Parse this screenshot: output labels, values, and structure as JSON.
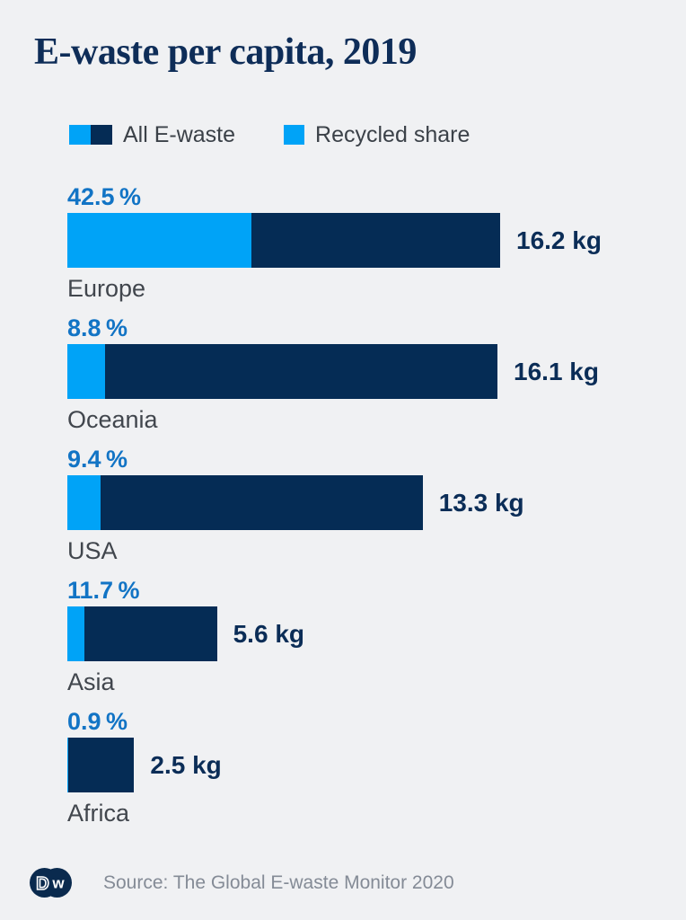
{
  "title": "E-waste per capita, 2019",
  "legend": {
    "all_label": "All E-waste",
    "recycled_label": "Recycled share"
  },
  "colors": {
    "background": "#f0f1f3",
    "bar_navy": "#052c55",
    "recycled_blue": "#00a3f7",
    "pct_text_blue": "#1274c5",
    "kg_text_navy": "#0b2d57",
    "region_text_gray": "#41464d",
    "source_text_gray": "#848b96"
  },
  "footer": {
    "logo": "dw-logo",
    "source": "Source: The Global E-waste Monitor 2020"
  },
  "chart_data": {
    "type": "bar",
    "orientation": "horizontal",
    "title": "E-waste per capita, 2019",
    "categories": [
      "Europe",
      "Oceania",
      "USA",
      "Asia",
      "Africa"
    ],
    "series": [
      {
        "name": "All E-waste",
        "unit": "kg",
        "values": [
          16.2,
          16.1,
          13.3,
          5.6,
          2.5
        ]
      },
      {
        "name": "Recycled share",
        "unit": "%",
        "values": [
          42.5,
          8.8,
          9.4,
          11.7,
          0.9
        ]
      }
    ],
    "xlim": [
      0,
      16.2
    ],
    "grid": false,
    "legend_position": "top",
    "source": "The Global E-waste Monitor 2020",
    "rows": [
      {
        "region": "Europe",
        "kg": 16.2,
        "pct": 42.5,
        "kg_label": "16.2 kg",
        "pct_label": "42.5 %"
      },
      {
        "region": "Oceania",
        "kg": 16.1,
        "pct": 8.8,
        "kg_label": "16.1 kg",
        "pct_label": "8.8 %"
      },
      {
        "region": "USA",
        "kg": 13.3,
        "pct": 9.4,
        "kg_label": "13.3 kg",
        "pct_label": "9.4 %"
      },
      {
        "region": "Asia",
        "kg": 5.6,
        "pct": 11.7,
        "kg_label": "5.6 kg",
        "pct_label": "11.7 %"
      },
      {
        "region": "Africa",
        "kg": 2.5,
        "pct": 0.9,
        "kg_label": "2.5 kg",
        "pct_label": "0.9 %"
      }
    ]
  }
}
